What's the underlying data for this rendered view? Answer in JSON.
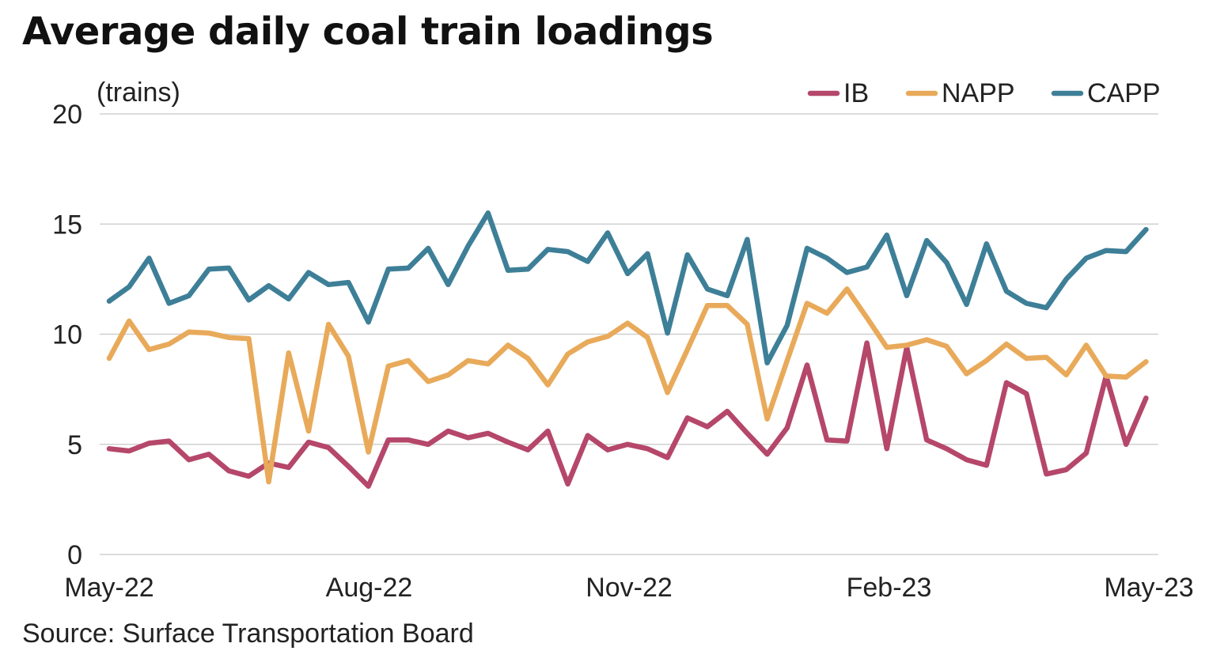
{
  "title": "Average daily coal train loadings",
  "source": "Source: Surface Transportation Board",
  "colors": {
    "IB": "#b5476a",
    "NAPP": "#e8aa5a",
    "CAPP": "#3e7f98"
  },
  "chart_data": {
    "type": "line",
    "title": "Average daily coal train loadings",
    "ylabel": "(trains)",
    "xlabel": "",
    "ylim": [
      0,
      20
    ],
    "yticks": [
      "0",
      "5",
      "10",
      "15",
      "20"
    ],
    "xticks": [
      "May-22",
      "Aug-22",
      "Nov-22",
      "Feb-23",
      "May-23"
    ],
    "grid": true,
    "legend_position": "top-right",
    "x_range": [
      "2022-05-01",
      "2023-05-01"
    ],
    "x": [
      "2022-05-01",
      "2022-05-08",
      "2022-05-15",
      "2022-05-22",
      "2022-05-29",
      "2022-06-05",
      "2022-06-12",
      "2022-06-19",
      "2022-06-26",
      "2022-07-03",
      "2022-07-10",
      "2022-07-17",
      "2022-07-24",
      "2022-07-31",
      "2022-08-07",
      "2022-08-14",
      "2022-08-21",
      "2022-08-28",
      "2022-09-04",
      "2022-09-11",
      "2022-09-18",
      "2022-09-25",
      "2022-10-02",
      "2022-10-09",
      "2022-10-16",
      "2022-10-23",
      "2022-10-30",
      "2022-11-06",
      "2022-11-13",
      "2022-11-20",
      "2022-11-27",
      "2022-12-04",
      "2022-12-11",
      "2022-12-18",
      "2022-12-25",
      "2023-01-01",
      "2023-01-08",
      "2023-01-15",
      "2023-01-22",
      "2023-01-29",
      "2023-02-05",
      "2023-02-12",
      "2023-02-19",
      "2023-02-26",
      "2023-03-05",
      "2023-03-12",
      "2023-03-19",
      "2023-03-26",
      "2023-04-02",
      "2023-04-09",
      "2023-04-16",
      "2023-04-23",
      "2023-04-30"
    ],
    "series": [
      {
        "name": "IB",
        "values": [
          4.8,
          4.7,
          5.05,
          5.15,
          4.3,
          4.55,
          3.8,
          3.55,
          4.15,
          3.95,
          5.1,
          4.85,
          4.0,
          3.1,
          5.2,
          5.2,
          5.0,
          5.6,
          5.3,
          5.5,
          5.1,
          4.75,
          5.6,
          3.2,
          5.4,
          4.75,
          5.0,
          4.8,
          4.4,
          6.2,
          5.8,
          6.5,
          5.5,
          4.55,
          5.75,
          8.6,
          5.2,
          5.15,
          9.6,
          4.8,
          9.4,
          5.2,
          4.8,
          4.3,
          4.05,
          7.8,
          7.3,
          3.65,
          3.85,
          4.6,
          8.1,
          5.0,
          7.1
        ]
      },
      {
        "name": "NAPP",
        "values": [
          8.9,
          10.6,
          9.3,
          9.55,
          10.1,
          10.05,
          9.85,
          9.8,
          3.3,
          9.15,
          5.6,
          10.45,
          9.0,
          4.65,
          8.55,
          8.8,
          7.85,
          8.15,
          8.8,
          8.65,
          9.5,
          8.9,
          7.7,
          9.1,
          9.65,
          9.9,
          10.5,
          9.85,
          7.35,
          9.3,
          11.3,
          11.3,
          10.45,
          6.15,
          8.8,
          11.4,
          10.95,
          12.05,
          10.75,
          9.4,
          9.5,
          9.75,
          9.45,
          8.2,
          8.8,
          9.55,
          8.9,
          8.95,
          8.15,
          9.5,
          8.1,
          8.05,
          8.75
        ]
      },
      {
        "name": "CAPP",
        "values": [
          11.5,
          12.15,
          13.45,
          11.4,
          11.75,
          12.95,
          13.0,
          11.55,
          12.2,
          11.6,
          12.8,
          12.25,
          12.35,
          10.55,
          12.95,
          13.0,
          13.9,
          12.25,
          14.0,
          15.5,
          12.9,
          12.95,
          13.85,
          13.75,
          13.3,
          14.6,
          12.75,
          13.65,
          10.05,
          13.6,
          12.05,
          11.75,
          14.3,
          8.7,
          10.4,
          13.9,
          13.45,
          12.8,
          13.05,
          14.5,
          11.75,
          14.25,
          13.25,
          11.35,
          14.1,
          11.95,
          11.4,
          11.2,
          12.5,
          13.45,
          13.8,
          13.75,
          14.75
        ]
      }
    ]
  }
}
